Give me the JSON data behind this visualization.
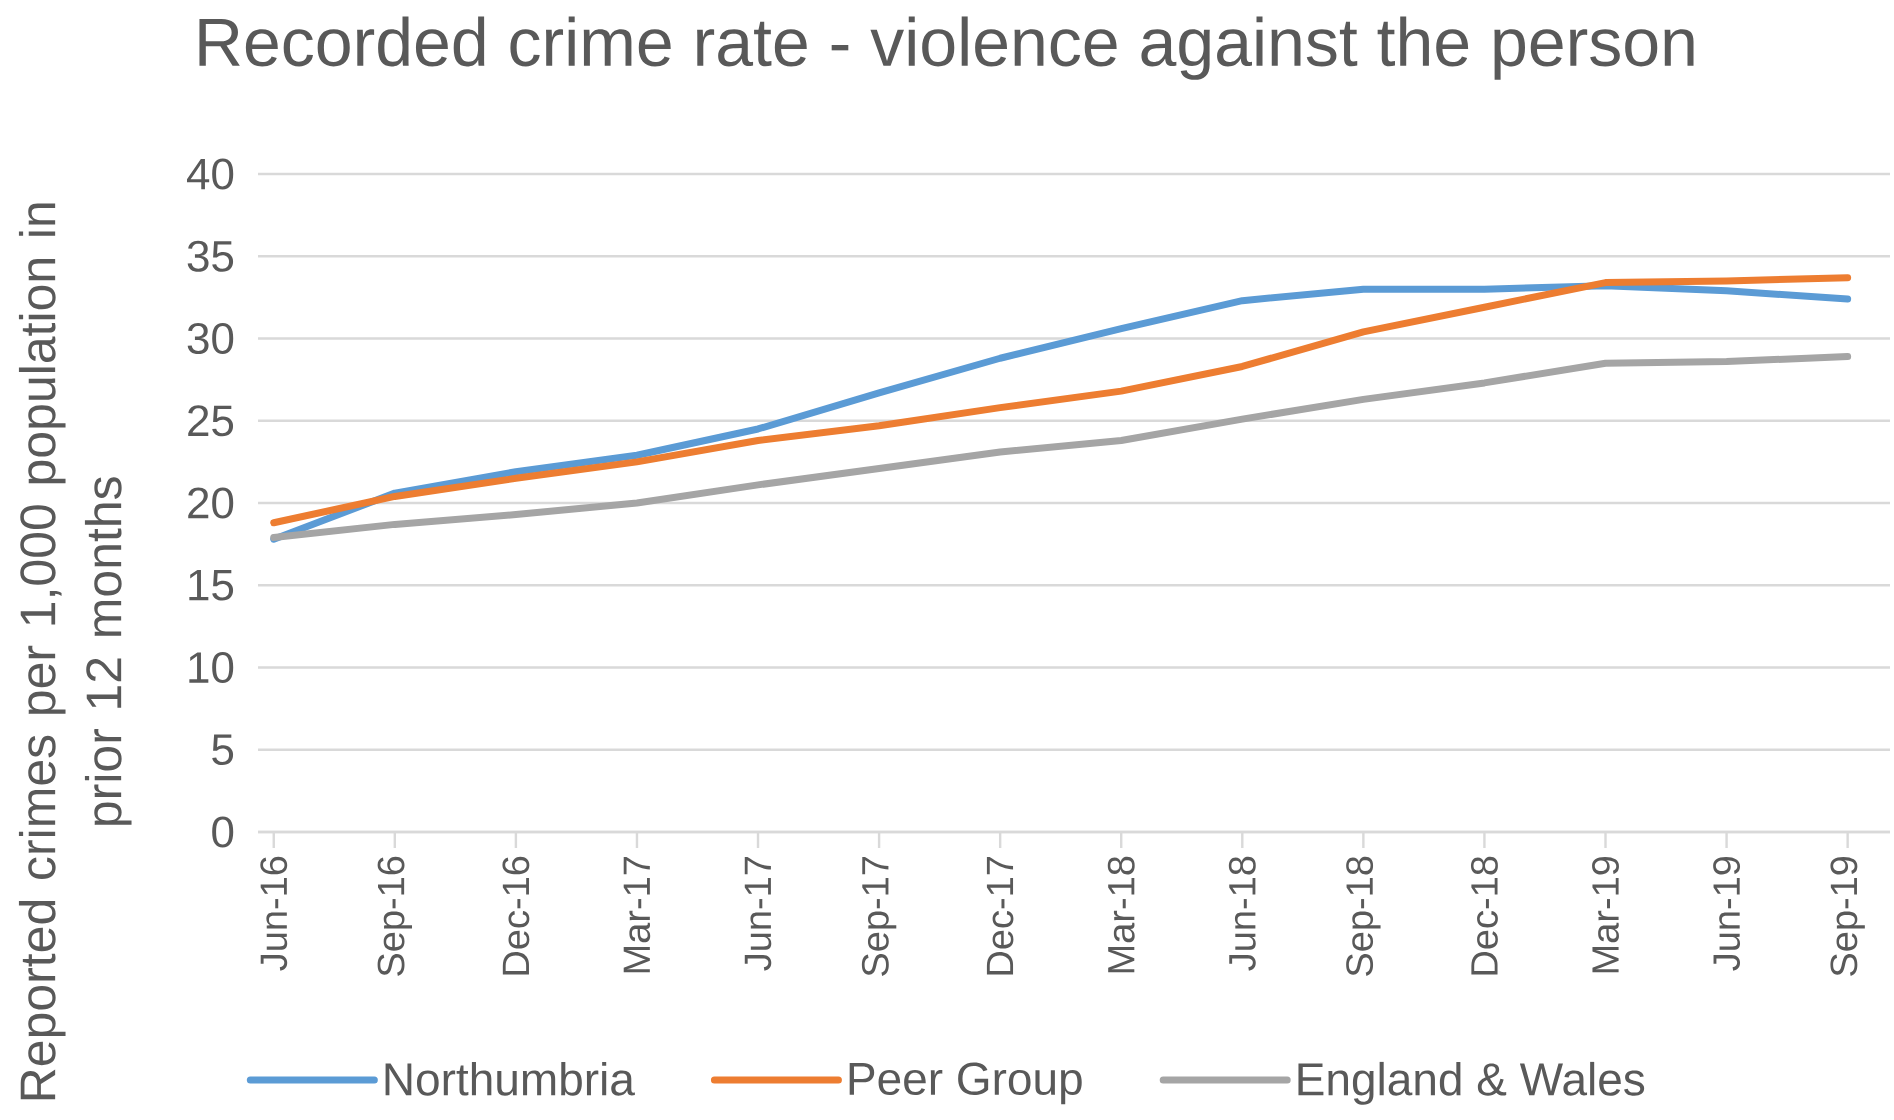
{
  "chart_data": {
    "type": "line",
    "title": "Recorded crime rate - violence against the person",
    "ylabel": "Reported crimes per 1,000 population in prior 12 months",
    "categories": [
      "Jun-16",
      "Sep-16",
      "Dec-16",
      "Mar-17",
      "Jun-17",
      "Sep-17",
      "Dec-17",
      "Mar-18",
      "Jun-18",
      "Sep-18",
      "Dec-18",
      "Mar-19",
      "Jun-19",
      "Sep-19"
    ],
    "series": [
      {
        "name": "Northumbria",
        "color": "#5b9bd5",
        "values": [
          17.8,
          20.6,
          21.9,
          22.9,
          24.5,
          26.7,
          28.8,
          30.6,
          32.3,
          33.0,
          33.0,
          33.2,
          32.9,
          32.4
        ]
      },
      {
        "name": "Peer Group",
        "color": "#ed7d31",
        "values": [
          18.8,
          20.4,
          21.5,
          22.5,
          23.8,
          24.7,
          25.8,
          26.8,
          28.3,
          30.4,
          31.9,
          33.4,
          33.5,
          33.7
        ]
      },
      {
        "name": "England & Wales",
        "color": "#a5a5a5",
        "values": [
          17.9,
          18.7,
          19.3,
          20.0,
          21.1,
          22.1,
          23.1,
          23.8,
          25.1,
          26.3,
          27.3,
          28.5,
          28.6,
          28.9
        ]
      }
    ],
    "ylim": [
      0,
      40
    ],
    "yticks": [
      0,
      5,
      10,
      15,
      20,
      25,
      30,
      35,
      40
    ],
    "grid": "y",
    "legend": "bottom",
    "line_style": "solid"
  }
}
